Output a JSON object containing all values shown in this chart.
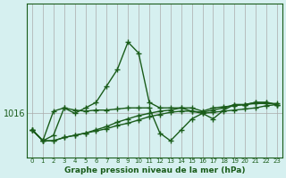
{
  "xlabel": "Graphe pression niveau de la mer (hPa)",
  "background_color": "#d6f0f0",
  "plot_bg_color": "#d6f0f0",
  "grid_color": "#aaaaaa",
  "line_color": "#1a5c1a",
  "x_labels": [
    "0",
    "1",
    "2",
    "3",
    "4",
    "5",
    "6",
    "7",
    "8",
    "9",
    "10",
    "11",
    "12",
    "13",
    "14",
    "15",
    "16",
    "17",
    "18",
    "19",
    "20",
    "21",
    "22",
    "23"
  ],
  "y_label_1016": 1016,
  "ylim_min": 1012.0,
  "ylim_max": 1026.0,
  "series": [
    [
      1014.5,
      1013.5,
      1014.0,
      1016.5,
      1016.0,
      1016.5,
      1017.0,
      1018.5,
      1020.0,
      1022.5,
      1021.5,
      1017.0,
      1016.5,
      1016.5,
      1016.5,
      1016.2,
      1016.1,
      1016.3,
      1016.5,
      1016.8,
      1016.8,
      1017.0,
      1017.0,
      1016.8
    ],
    [
      1014.5,
      1013.5,
      1016.2,
      1016.5,
      1016.3,
      1016.2,
      1016.3,
      1016.3,
      1016.4,
      1016.5,
      1016.5,
      1016.5,
      1014.2,
      1013.5,
      1014.5,
      1015.5,
      1016.0,
      1015.5,
      1016.3,
      1016.8,
      1016.8,
      1017.0,
      1017.0,
      1016.8
    ],
    [
      1014.5,
      1013.5,
      1013.5,
      1013.8,
      1014.0,
      1014.2,
      1014.5,
      1014.8,
      1015.2,
      1015.5,
      1015.8,
      1016.0,
      1016.2,
      1016.3,
      1016.5,
      1016.5,
      1016.2,
      1016.5,
      1016.6,
      1016.7,
      1016.8,
      1016.9,
      1016.9,
      1016.9
    ],
    [
      1014.5,
      1013.5,
      1013.5,
      1013.8,
      1014.0,
      1014.2,
      1014.4,
      1014.6,
      1014.9,
      1015.1,
      1015.4,
      1015.7,
      1015.9,
      1016.1,
      1016.2,
      1016.2,
      1016.0,
      1016.1,
      1016.2,
      1016.3,
      1016.4,
      1016.5,
      1016.7,
      1016.8
    ]
  ]
}
